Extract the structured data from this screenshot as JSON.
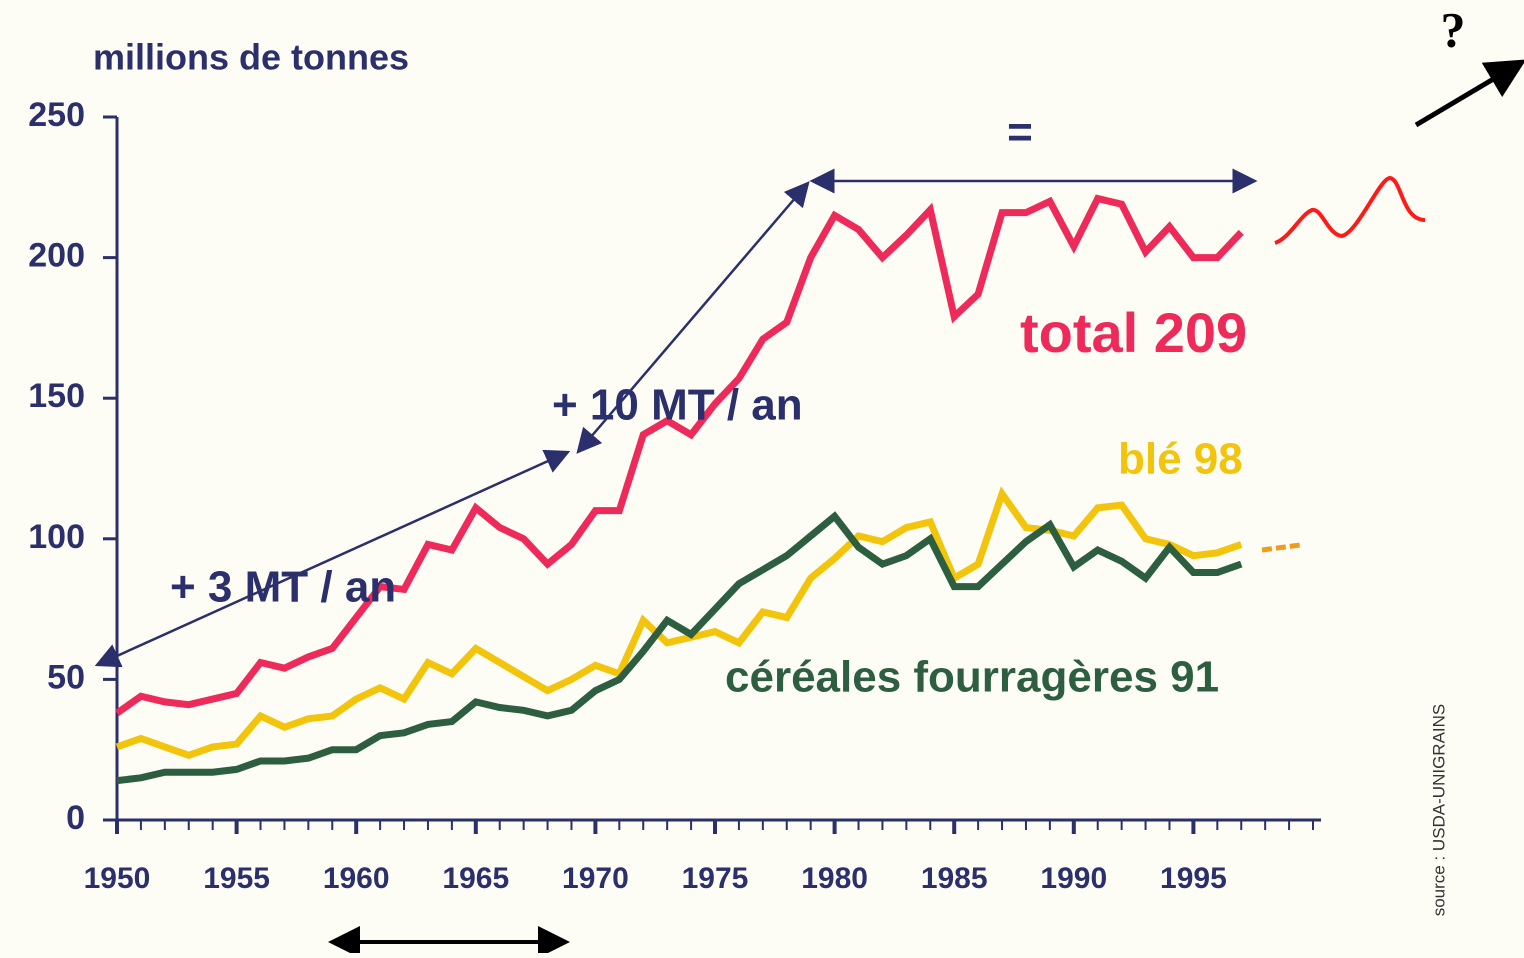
{
  "chart_data": {
    "type": "line",
    "y_label": "millions de tonnes",
    "source": "source : USDA-UNIGRAINS",
    "annotations": [
      "+ 3 MT / an",
      "+ 10 MT / an",
      "=",
      "?"
    ],
    "x": [
      1950,
      1951,
      1952,
      1953,
      1954,
      1955,
      1956,
      1957,
      1958,
      1959,
      1960,
      1961,
      1962,
      1963,
      1964,
      1965,
      1966,
      1967,
      1968,
      1969,
      1970,
      1971,
      1972,
      1973,
      1974,
      1975,
      1976,
      1977,
      1978,
      1979,
      1980,
      1981,
      1982,
      1983,
      1984,
      1985,
      1986,
      1987,
      1988,
      1989,
      1990,
      1991,
      1992,
      1993,
      1994,
      1995,
      1996,
      1997
    ],
    "series": [
      {
        "name": "total 209",
        "color": "#ee2a5b",
        "values": [
          38,
          44,
          42,
          41,
          43,
          45,
          56,
          54,
          58,
          61,
          72,
          83,
          82,
          98,
          96,
          111,
          104,
          100,
          91,
          98,
          110,
          110,
          137,
          142,
          137,
          148,
          157,
          171,
          177,
          200,
          215,
          210,
          200,
          208,
          217,
          179,
          187,
          216,
          216,
          220,
          204,
          221,
          219,
          202,
          211,
          200,
          200,
          209
        ]
      },
      {
        "name": "blé 98",
        "color": "#f2c40c",
        "values": [
          26,
          29,
          26,
          23,
          26,
          27,
          37,
          33,
          36,
          37,
          43,
          47,
          43,
          56,
          52,
          61,
          56,
          51,
          46,
          50,
          55,
          52,
          71,
          63,
          65,
          67,
          63,
          74,
          72,
          86,
          93,
          101,
          99,
          104,
          106,
          86,
          91,
          116,
          104,
          103,
          101,
          111,
          112,
          100,
          98,
          94,
          95,
          98
        ]
      },
      {
        "name": "céréales fourragères 91",
        "color": "#2d5e3f",
        "values": [
          14,
          15,
          17,
          17,
          17,
          18,
          21,
          21,
          22,
          25,
          25,
          30,
          31,
          34,
          35,
          42,
          40,
          39,
          37,
          39,
          46,
          50,
          60,
          71,
          66,
          75,
          84,
          89,
          94,
          101,
          108,
          97,
          91,
          94,
          100,
          83,
          83,
          91,
          99,
          105,
          90,
          96,
          92,
          86,
          97,
          88,
          88,
          91
        ]
      }
    ],
    "xlim": [
      1950,
      2000
    ],
    "ylim": [
      0,
      250
    ],
    "xticks": [
      1950,
      1955,
      1960,
      1965,
      1970,
      1975,
      1980,
      1985,
      1990,
      1995
    ],
    "yticks": [
      0,
      50,
      100,
      150,
      200,
      250
    ]
  }
}
